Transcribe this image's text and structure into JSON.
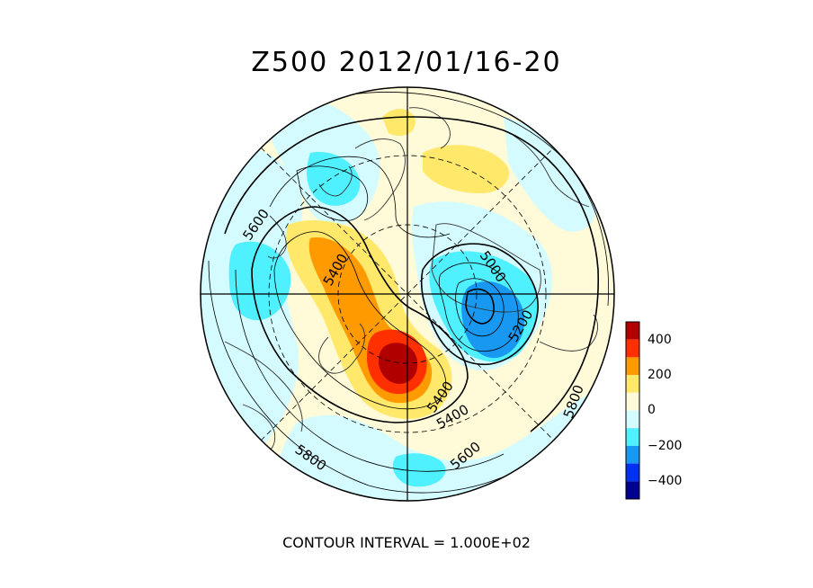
{
  "title": "Z500  2012/01/16-20",
  "footer": "CONTOUR INTERVAL = 1.000E+02",
  "colorbar": {
    "labels": [
      "400",
      "200",
      "0",
      "−200",
      "−400"
    ],
    "colors": [
      "#b00000",
      "#ff3000",
      "#ff9a00",
      "#ffe86a",
      "#fffad8",
      "#d4fbff",
      "#4ff0ff",
      "#1898f0",
      "#0030f0",
      "#000090"
    ]
  },
  "contour_labels": {
    "c5600_left": "5600",
    "c5400_upper": "5400",
    "c5000": "5000",
    "c5200": "5200",
    "c5400_lower_a": "5400",
    "c5400_lower_b": "5400",
    "c5600_bottom": "5600",
    "c5800_bottom": "5800",
    "c5800_right": "5800"
  },
  "palette": {
    "deep_red": "#b00000",
    "red": "#ff3000",
    "orange": "#ff9a00",
    "yellow": "#ffe86a",
    "cream": "#fffad8",
    "pale_cyan": "#d4fbff",
    "cyan": "#4ff0ff",
    "blue": "#1898f0"
  }
}
